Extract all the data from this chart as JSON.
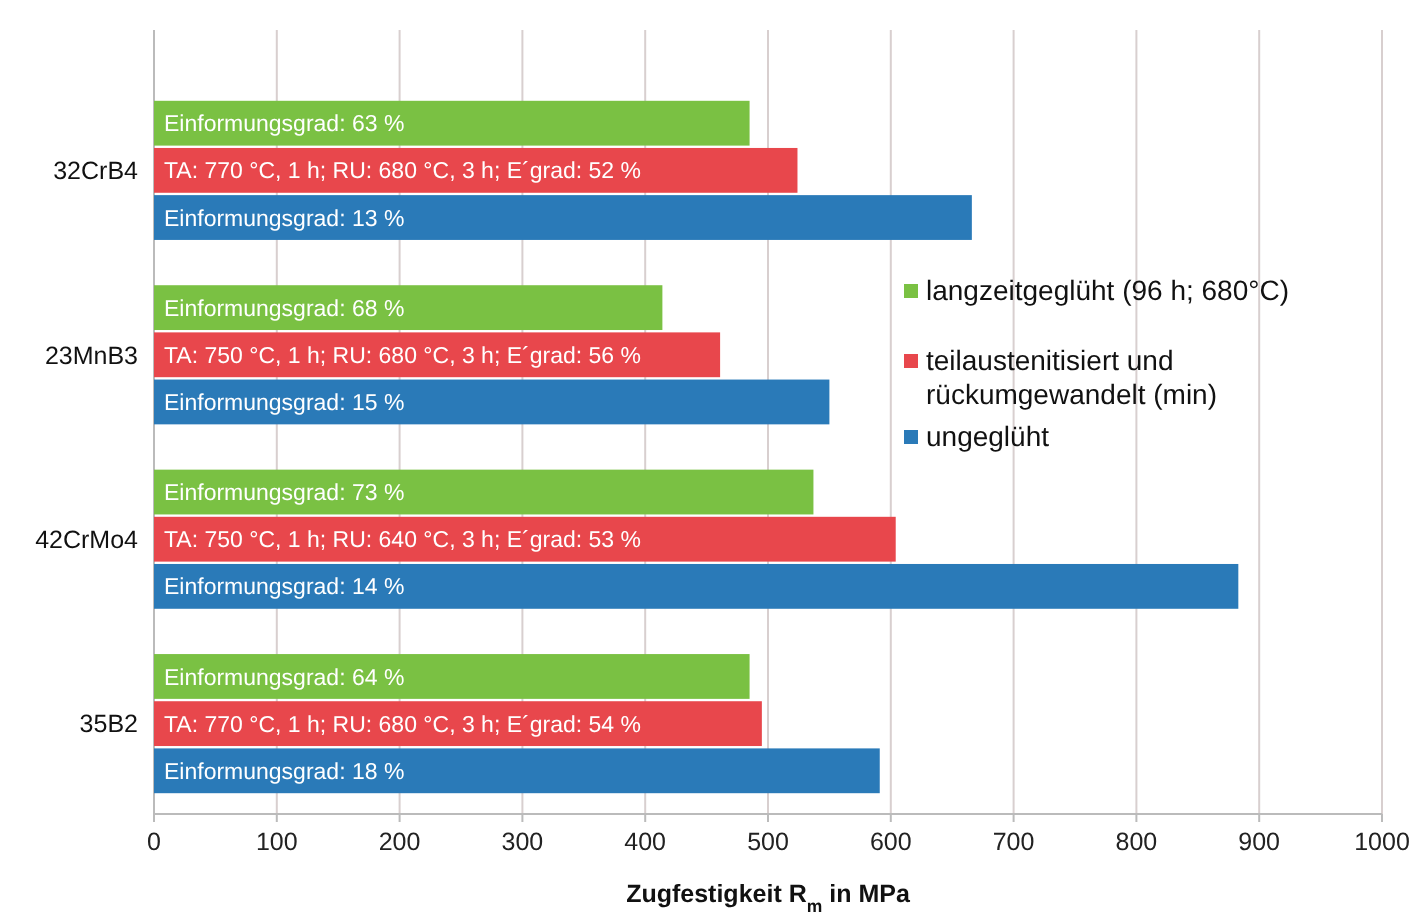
{
  "chart_data": {
    "type": "bar",
    "orientation": "horizontal",
    "xlabel": "Zugfestigkeit R$_{m}$ in MPa",
    "categories": [
      "32CrB4",
      "23MnB3",
      "42CrMo4",
      "35B2"
    ],
    "series": [
      {
        "name": "langzeitgeglüht (96 h; 680°C)",
        "color": "#7ac143",
        "values": [
          485,
          414,
          537,
          485
        ]
      },
      {
        "name": "teilaustenitisiert und rückumgewandelt (min)",
        "color": "#e8474c",
        "values": [
          524,
          461,
          604,
          495
        ]
      },
      {
        "name": "ungeglüht",
        "color": "#2a7ab8",
        "values": [
          666,
          550,
          883,
          591
        ]
      }
    ],
    "annotations": [
      "Einformungsgrad: 63 %",
      "TA: 770 °C, 1 h; RU: 680 °C, 3 h; E´grad: 52 %",
      "Einformungsgrad: 13 %",
      "Einformungsgrad: 68 %",
      "TA: 750 °C, 1 h; RU: 680 °C, 3 h; E´grad: 56 %",
      "Einformungsgrad: 15 %",
      "Einformungsgrad: 73 %",
      "TA: 750 °C, 1 h; RU: 640 °C, 3 h; E´grad: 53 %",
      "Einformungsgrad: 14 %",
      "Einformungsgrad: 64 %",
      "TA: 770 °C, 1 h; RU: 680 °C, 3 h; E´grad: 54 %",
      "Einformungsgrad: 18 %"
    ],
    "xlim": [
      0,
      1000
    ],
    "xticks": [
      0,
      100,
      200,
      300,
      400,
      500,
      600,
      700,
      800,
      900,
      1000
    ],
    "grid": "x",
    "legend": "right"
  }
}
